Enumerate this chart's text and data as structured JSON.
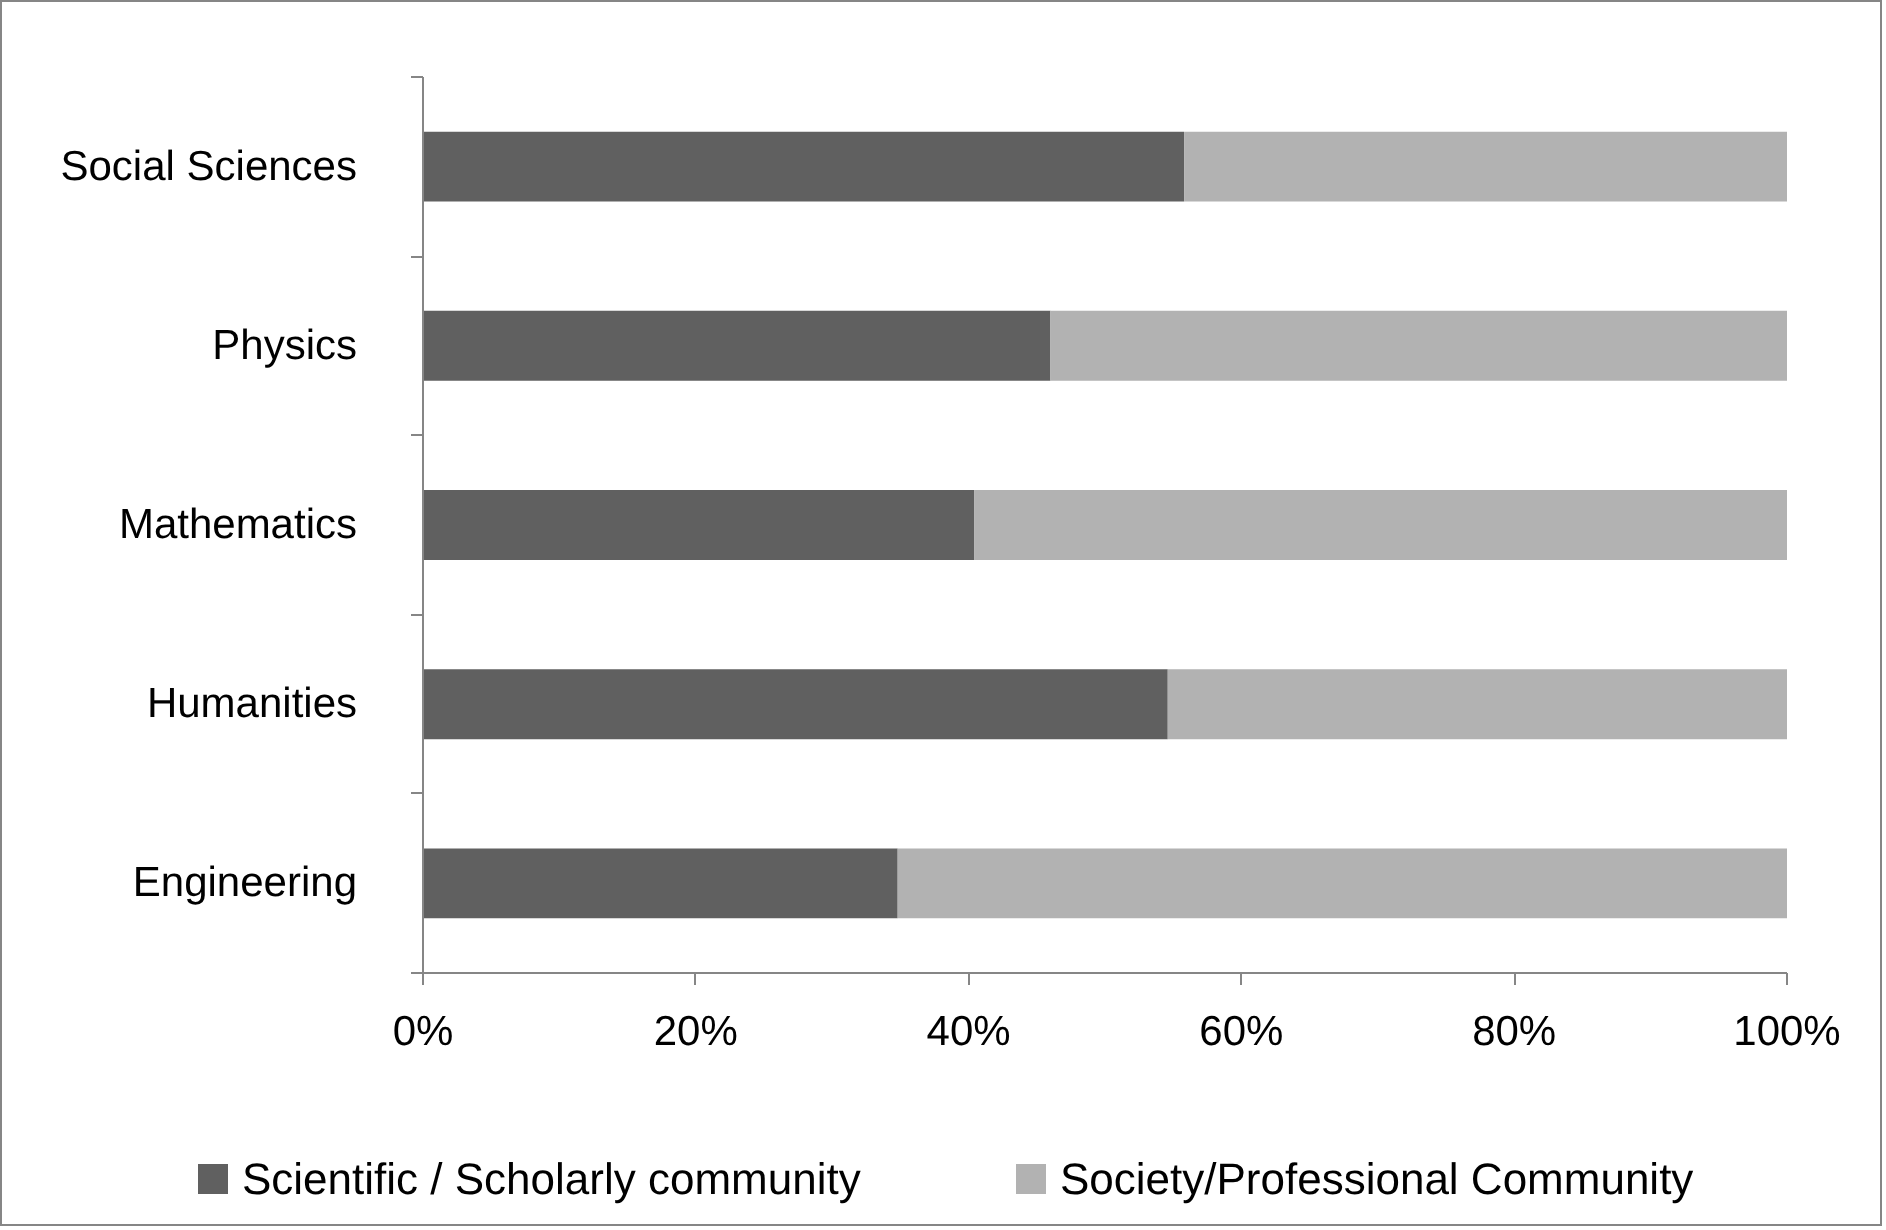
{
  "chart_data": {
    "type": "bar",
    "orientation": "horizontal",
    "stacked": true,
    "categories": [
      "Social Sciences",
      "Physics",
      "Mathematics",
      "Humanities",
      "Engineering"
    ],
    "series": [
      {
        "name": "Scientific / Scholarly community",
        "color": "#606060",
        "values": [
          55.8,
          46.0,
          40.4,
          54.6,
          34.8
        ]
      },
      {
        "name": "Society/Professional Community",
        "color": "#b2b2b2",
        "values": [
          44.2,
          54.0,
          59.6,
          45.4,
          65.2
        ]
      }
    ],
    "xlim": [
      0,
      100
    ],
    "xticks": [
      {
        "value": 0,
        "label": "0%"
      },
      {
        "value": 20,
        "label": "20%"
      },
      {
        "value": 40,
        "label": "40%"
      },
      {
        "value": 60,
        "label": "60%"
      },
      {
        "value": 80,
        "label": "80%"
      },
      {
        "value": 100,
        "label": "100%"
      }
    ],
    "grid": false,
    "legend": "bottom"
  }
}
